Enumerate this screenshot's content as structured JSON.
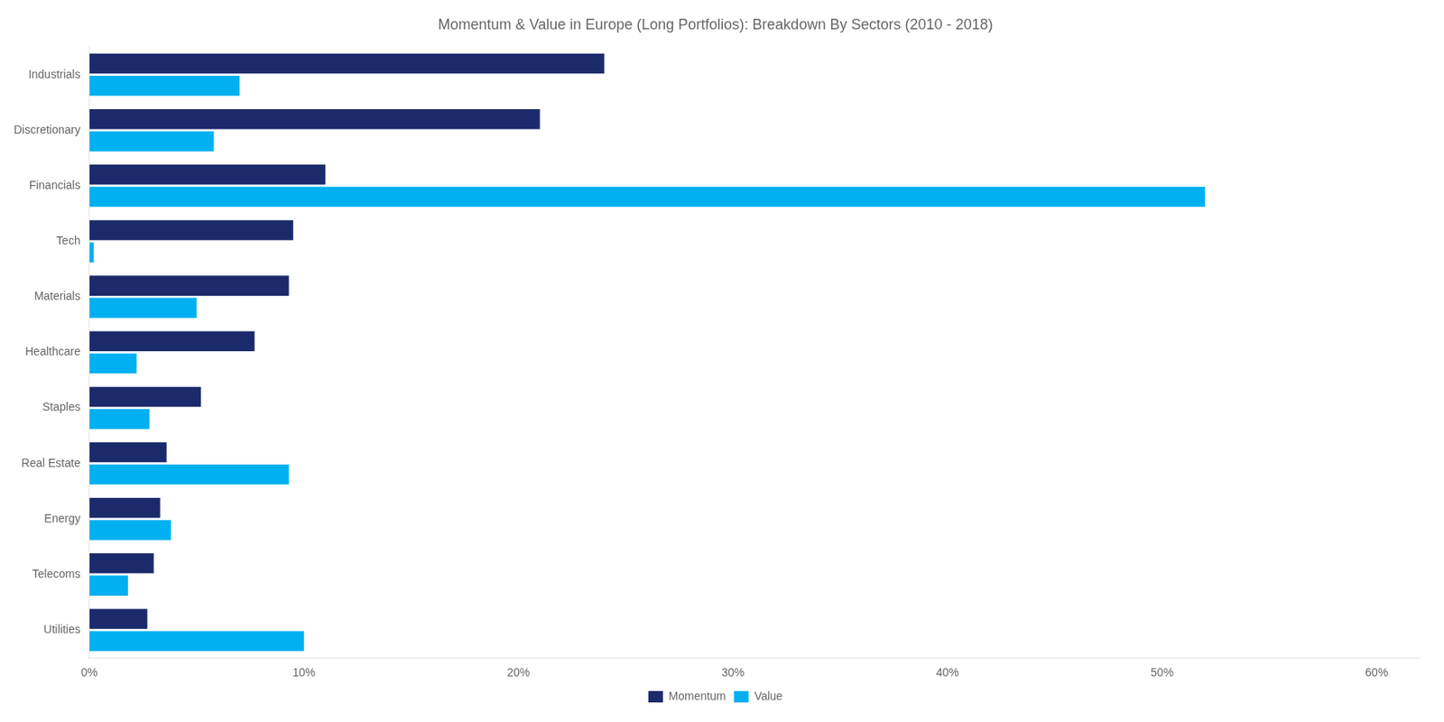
{
  "chart_data": {
    "type": "bar",
    "orientation": "horizontal",
    "title": "Momentum & Value in Europe (Long Portfolios): Breakdown By Sectors (2010 - 2018)",
    "categories": [
      "Industrials",
      "Discretionary",
      "Financials",
      "Tech",
      "Materials",
      "Healthcare",
      "Staples",
      "Real Estate",
      "Energy",
      "Telecoms",
      "Utilities"
    ],
    "series": [
      {
        "name": "Momentum",
        "color": "#1b2a6b",
        "values": [
          0.24,
          0.21,
          0.11,
          0.095,
          0.093,
          0.077,
          0.052,
          0.036,
          0.033,
          0.03,
          0.027
        ]
      },
      {
        "name": "Value",
        "color": "#00b0f0",
        "values": [
          0.07,
          0.058,
          0.52,
          0.002,
          0.05,
          0.022,
          0.028,
          0.093,
          0.038,
          0.018,
          0.1
        ]
      }
    ],
    "xlim": [
      0,
      0.62
    ],
    "xticks": [
      {
        "value": 0,
        "label": "0%"
      },
      {
        "value": 0.1,
        "label": "10%"
      },
      {
        "value": 0.2,
        "label": "20%"
      },
      {
        "value": 0.3,
        "label": "30%"
      },
      {
        "value": 0.4,
        "label": "40%"
      },
      {
        "value": 0.5,
        "label": "50%"
      },
      {
        "value": 0.6,
        "label": "60%"
      }
    ],
    "grid": false,
    "legend": "bottom"
  }
}
